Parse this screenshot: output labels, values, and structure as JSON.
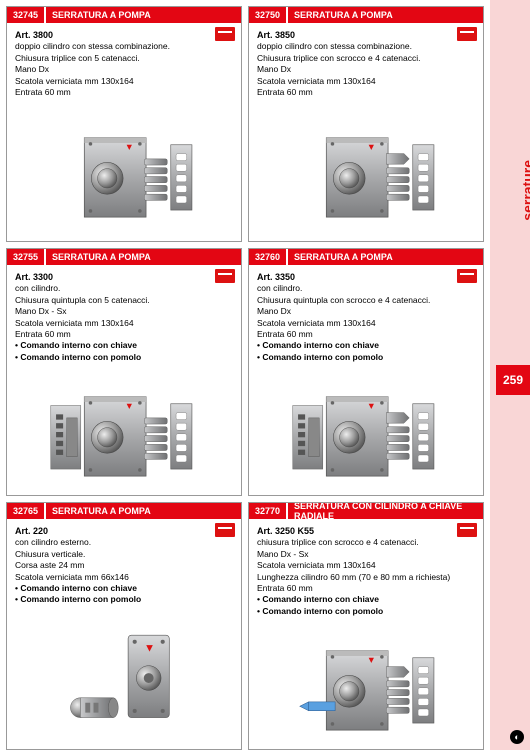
{
  "side": {
    "category": "serrature",
    "page_number": "259"
  },
  "colors": {
    "brand_red": "#e30613",
    "side_bg": "#f9d6d6",
    "border": "#999999"
  },
  "cards": [
    {
      "code": "32745",
      "title": "SERRATURA A POMPA",
      "art": "Art. 3800",
      "lines": [
        "doppio cilindro con stessa combinazione.",
        "Chiusura triplice con 5 catenacci.",
        "Mano Dx",
        "Scatola verniciata mm 130x164",
        "Entrata 60 mm"
      ],
      "bullets": [],
      "image": "lock-std"
    },
    {
      "code": "32750",
      "title": "SERRATURA A POMPA",
      "art": "Art. 3850",
      "lines": [
        "doppio cilindro con stessa combinazione.",
        "Chiusura triplice con scrocco e 4 catenacci.",
        "Mano Dx",
        "Scatola verniciata mm 130x164",
        "Entrata 60 mm"
      ],
      "bullets": [],
      "image": "lock-scrocco"
    },
    {
      "code": "32755",
      "title": "SERRATURA A POMPA",
      "art": "Art. 3300",
      "lines": [
        "con cilindro.",
        "Chiusura quintupla con 5 catenacci.",
        "Mano Dx - Sx",
        "Scatola verniciata mm 130x164",
        "Entrata 60 mm"
      ],
      "bullets": [
        "Comando interno con chiave",
        "Comando interno con pomolo"
      ],
      "image": "lock-back"
    },
    {
      "code": "32760",
      "title": "SERRATURA A POMPA",
      "art": "Art. 3350",
      "lines": [
        "con cilindro.",
        "Chiusura quintupla con scrocco e 4 catenacci.",
        "Mano Dx",
        "Scatola verniciata mm 130x164",
        "Entrata 60 mm"
      ],
      "bullets": [
        "Comando interno con chiave",
        "Comando interno con pomolo"
      ],
      "image": "lock-back-scrocco"
    },
    {
      "code": "32765",
      "title": "SERRATURA A POMPA",
      "art": "Art. 220",
      "lines": [
        "con cilindro esterno.",
        "Chiusura verticale.",
        "Corsa aste 24 mm",
        "Scatola verniciata mm 66x146"
      ],
      "bullets": [
        "Comando interno con chiave",
        "Comando interno con pomolo"
      ],
      "image": "cylinder-vertical"
    },
    {
      "code": "32770",
      "title": "SERRATURA CON CILINDRO A CHIAVE RADIALE",
      "art": "Art. 3250 K55",
      "lines": [
        "chiusura triplice con scrocco e 4 catenacci.",
        "Mano  Dx - Sx",
        "Scatola verniciata mm 130x164",
        "Lunghezza cilindro 60 mm (70 e 80 mm a richiesta)",
        "Entrata 60 mm"
      ],
      "bullets": [
        "Comando interno con chiave",
        "Comando interno con pomolo"
      ],
      "image": "lock-key"
    }
  ]
}
